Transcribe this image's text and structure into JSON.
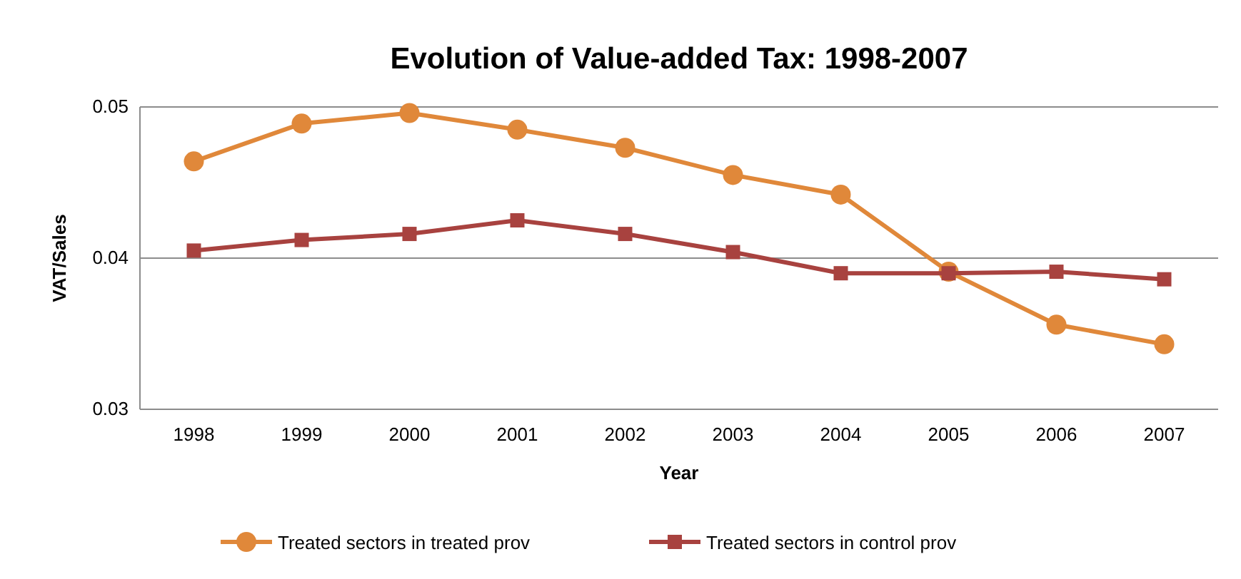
{
  "chart_data": {
    "type": "line",
    "title": "Evolution of Value-added Tax: 1998-2007",
    "xlabel": "Year",
    "ylabel": "VAT/Sales",
    "categories": [
      "1998",
      "1999",
      "2000",
      "2001",
      "2002",
      "2003",
      "2004",
      "2005",
      "2006",
      "2007"
    ],
    "series": [
      {
        "name": "Treated sectors in treated prov",
        "color": "#e0883a",
        "marker": "circle",
        "values": [
          0.0464,
          0.0489,
          0.0496,
          0.0485,
          0.0473,
          0.0455,
          0.0442,
          0.0391,
          0.0356,
          0.0343
        ]
      },
      {
        "name": "Treated sectors in control prov",
        "color": "#a8423f",
        "marker": "square",
        "values": [
          0.0405,
          0.0412,
          0.0416,
          0.0425,
          0.0416,
          0.0404,
          0.039,
          0.039,
          0.0391,
          0.0386
        ]
      }
    ],
    "ylim": [
      0.03,
      0.05
    ],
    "yticks": [
      0.03,
      0.04,
      0.05
    ],
    "grid": "y",
    "legend": "bottom",
    "line_style": "solid"
  }
}
